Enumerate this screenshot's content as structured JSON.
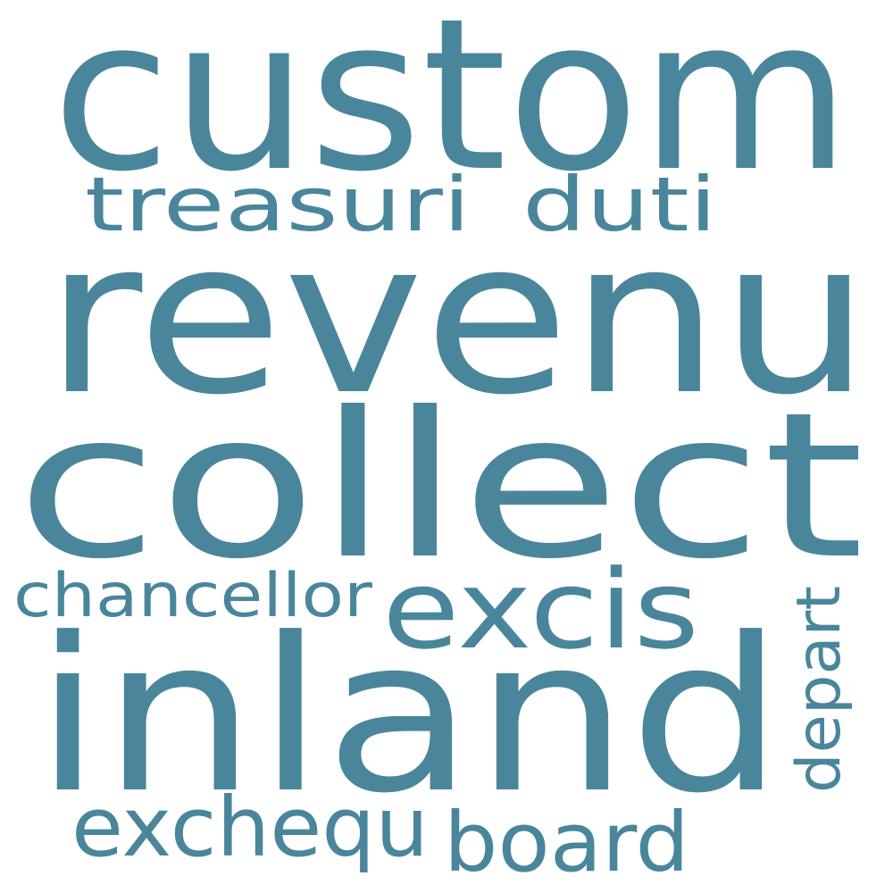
{
  "word_color": "#4a869b",
  "background": "#ffffff",
  "words": {
    "custom": "custom",
    "revenu": "revenu",
    "collect": "collect",
    "inland": "inland",
    "treasuri": "treasuri",
    "duti": "duti",
    "excis": "excis",
    "chancellor": "chancellor",
    "depart": "depart",
    "exchequ": "exchequ",
    "board": "board"
  }
}
